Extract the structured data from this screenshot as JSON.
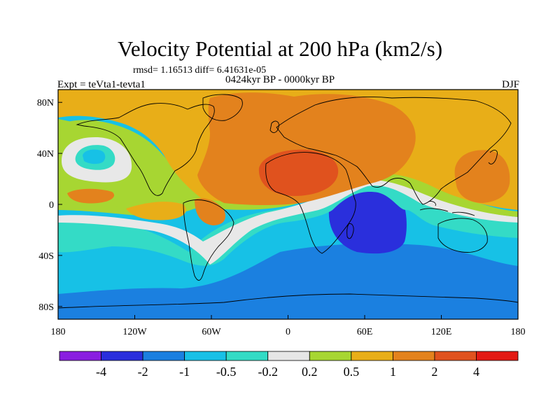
{
  "title": "Velocity Potential at 200 hPa (km2/s)",
  "stats": "rmsd= 1.16513 diff= 6.41631e-05",
  "experiment": "Expt = teVta1-tevta1",
  "period": "0424kyr BP - 0000kyr BP",
  "season": "DJF",
  "lon_ticks": [
    "180",
    "120W",
    "60W",
    "0",
    "60E",
    "120E",
    "180"
  ],
  "lat_ticks": [
    "80N",
    "40N",
    "0",
    "40S",
    "80S"
  ],
  "colorbar": {
    "labels": [
      "-4",
      "-2",
      "-1",
      "-0.5",
      "-0.2",
      "0.2",
      "0.5",
      "1",
      "2",
      "4"
    ],
    "colors": [
      "#8a1ee0",
      "#2a2fdc",
      "#1b7fe0",
      "#18c0e6",
      "#33dbc5",
      "#e6e6e6",
      "#a7d632",
      "#e8ae18",
      "#e3821d",
      "#e0521e",
      "#e31a14"
    ]
  },
  "palette": {
    "ocean_bg": "#17c1e6",
    "far_south": "#1b80e0",
    "deep_low": "#2a2fdc",
    "teal": "#34dbc6",
    "neutral": "#e8e8e8",
    "light_green": "#a7d632",
    "yellow_orange": "#e8ae18",
    "orange": "#e3821d",
    "red_orange": "#e0521e"
  }
}
